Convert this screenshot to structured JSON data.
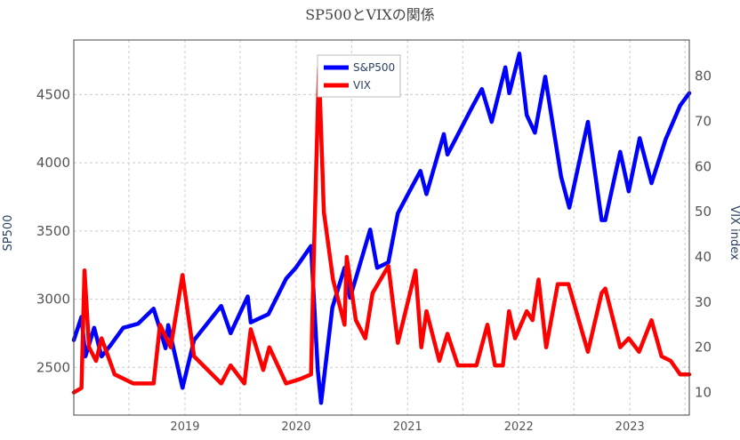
{
  "chart_data": {
    "type": "line",
    "title": "SP500とVIXの関係",
    "left_axis": {
      "label": "SP500",
      "ticks": [
        2500,
        3000,
        3500,
        4000,
        4500
      ],
      "range": [
        2150,
        4900
      ]
    },
    "right_axis": {
      "label": "VIX index",
      "ticks": [
        10,
        20,
        30,
        40,
        50,
        60,
        70,
        80
      ],
      "range": [
        5,
        88
      ]
    },
    "x_axis": {
      "ticks": [
        "2019",
        "2020",
        "2021",
        "2022",
        "2023"
      ],
      "range": [
        "2018-01-01",
        "2023-07-15"
      ]
    },
    "grid": true,
    "legend_position": "top-center",
    "series": [
      {
        "name": "S&P500",
        "axis": "left",
        "color": "#0000ff",
        "x": [
          "2018-01-01",
          "2018-01-26",
          "2018-02-08",
          "2018-03-09",
          "2018-04-02",
          "2018-05-01",
          "2018-06-12",
          "2018-07-31",
          "2018-09-20",
          "2018-10-11",
          "2018-10-29",
          "2018-11-07",
          "2018-12-24",
          "2019-01-31",
          "2019-04-30",
          "2019-05-31",
          "2019-07-26",
          "2019-08-05",
          "2019-10-02",
          "2019-11-29",
          "2019-12-31",
          "2020-02-19",
          "2020-03-12",
          "2020-03-23",
          "2020-04-29",
          "2020-06-08",
          "2020-06-26",
          "2020-08-31",
          "2020-09-23",
          "2020-10-30",
          "2020-11-30",
          "2020-12-31",
          "2021-02-12",
          "2021-03-04",
          "2021-04-30",
          "2021-05-12",
          "2021-07-30",
          "2021-09-02",
          "2021-10-04",
          "2021-11-18",
          "2021-12-01",
          "2022-01-03",
          "2022-01-27",
          "2022-02-23",
          "2022-03-29",
          "2022-05-20",
          "2022-06-16",
          "2022-08-16",
          "2022-09-30",
          "2022-10-12",
          "2022-11-30",
          "2022-12-28",
          "2023-02-02",
          "2023-03-13",
          "2023-04-28",
          "2023-06-15",
          "2023-07-15"
        ],
        "values": [
          2700,
          2870,
          2580,
          2790,
          2580,
          2660,
          2790,
          2820,
          2930,
          2780,
          2640,
          2810,
          2350,
          2700,
          2950,
          2750,
          3020,
          2830,
          2890,
          3150,
          3230,
          3390,
          2480,
          2240,
          2940,
          3230,
          3010,
          3510,
          3230,
          3270,
          3630,
          3760,
          3940,
          3770,
          4210,
          4060,
          4400,
          4540,
          4300,
          4700,
          4510,
          4800,
          4350,
          4220,
          4630,
          3900,
          3670,
          4300,
          3580,
          3580,
          4080,
          3790,
          4180,
          3850,
          4170,
          4420,
          4510
        ]
      },
      {
        "name": "VIX",
        "axis": "right",
        "color": "#ff0000",
        "x": [
          "2018-01-01",
          "2018-01-26",
          "2018-02-05",
          "2018-02-20",
          "2018-03-15",
          "2018-04-02",
          "2018-05-15",
          "2018-07-15",
          "2018-09-20",
          "2018-10-11",
          "2018-11-15",
          "2018-12-24",
          "2019-01-31",
          "2019-04-30",
          "2019-05-31",
          "2019-07-15",
          "2019-08-05",
          "2019-09-15",
          "2019-10-05",
          "2019-11-29",
          "2020-01-15",
          "2020-02-19",
          "2020-02-28",
          "2020-03-16",
          "2020-04-01",
          "2020-05-01",
          "2020-06-08",
          "2020-06-15",
          "2020-07-15",
          "2020-08-15",
          "2020-09-08",
          "2020-10-30",
          "2020-11-30",
          "2021-01-27",
          "2021-02-15",
          "2021-03-04",
          "2021-04-15",
          "2021-05-12",
          "2021-06-15",
          "2021-08-15",
          "2021-09-20",
          "2021-10-15",
          "2021-11-10",
          "2021-11-30",
          "2021-12-20",
          "2022-01-27",
          "2022-02-15",
          "2022-03-07",
          "2022-04-01",
          "2022-05-09",
          "2022-06-13",
          "2022-08-16",
          "2022-09-30",
          "2022-10-12",
          "2022-11-30",
          "2022-12-28",
          "2023-01-31",
          "2023-03-13",
          "2023-04-15",
          "2023-05-15",
          "2023-06-15",
          "2023-07-15"
        ],
        "values": [
          10,
          11,
          37,
          20,
          17,
          22,
          14,
          12,
          12,
          25,
          20,
          36,
          18,
          12,
          16,
          12,
          24,
          15,
          20,
          12,
          13,
          14,
          40,
          82,
          50,
          35,
          25,
          40,
          26,
          22,
          32,
          38,
          21,
          37,
          20,
          28,
          17,
          23,
          16,
          16,
          25,
          16,
          16,
          28,
          22,
          28,
          26,
          35,
          20,
          34,
          34,
          19,
          32,
          33,
          20,
          22,
          19,
          26,
          18,
          17,
          14,
          14
        ]
      }
    ]
  }
}
